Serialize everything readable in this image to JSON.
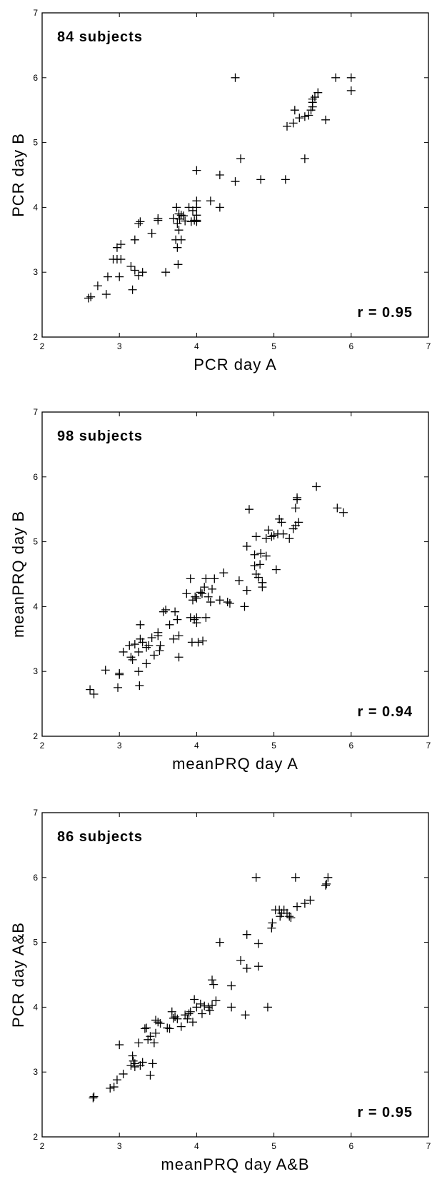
{
  "chart_data": [
    {
      "type": "scatter",
      "marker": "plus",
      "annotation": "84 subjects",
      "correlation_label": "r = 0.95",
      "xlabel": "PCR day A",
      "ylabel": "PCR day B",
      "xlim": [
        2,
        7
      ],
      "ylim": [
        2,
        7
      ],
      "xticks": [
        2,
        3,
        4,
        5,
        6,
        7
      ],
      "yticks": [
        2,
        3,
        4,
        5,
        6,
        7
      ],
      "grid": false,
      "points": [
        [
          2.6,
          2.6
        ],
        [
          2.63,
          2.62
        ],
        [
          2.72,
          2.79
        ],
        [
          2.83,
          2.66
        ],
        [
          2.85,
          2.93
        ],
        [
          2.92,
          3.2
        ],
        [
          2.97,
          3.2
        ],
        [
          3.0,
          2.93
        ],
        [
          3.02,
          3.2
        ],
        [
          2.97,
          3.38
        ],
        [
          3.02,
          3.43
        ],
        [
          3.15,
          3.09
        ],
        [
          3.17,
          2.73
        ],
        [
          3.2,
          3.03
        ],
        [
          3.2,
          3.5
        ],
        [
          3.25,
          2.95
        ],
        [
          3.3,
          3.0
        ],
        [
          3.25,
          3.75
        ],
        [
          3.27,
          3.78
        ],
        [
          3.42,
          3.6
        ],
        [
          3.5,
          3.8
        ],
        [
          3.5,
          3.83
        ],
        [
          3.6,
          3.0
        ],
        [
          3.7,
          3.83
        ],
        [
          3.73,
          3.5
        ],
        [
          3.75,
          3.38
        ],
        [
          3.76,
          3.12
        ],
        [
          3.74,
          4.0
        ],
        [
          3.75,
          3.75
        ],
        [
          3.77,
          3.9
        ],
        [
          3.78,
          3.82
        ],
        [
          3.8,
          3.88
        ],
        [
          3.8,
          3.5
        ],
        [
          3.83,
          3.87
        ],
        [
          3.85,
          3.79
        ],
        [
          3.77,
          3.65
        ],
        [
          3.9,
          4.0
        ],
        [
          3.93,
          3.78
        ],
        [
          3.95,
          3.95
        ],
        [
          3.97,
          3.8
        ],
        [
          4.0,
          4.0
        ],
        [
          4.0,
          4.1
        ],
        [
          4.0,
          3.88
        ],
        [
          4.0,
          3.8
        ],
        [
          4.0,
          3.78
        ],
        [
          4.0,
          4.57
        ],
        [
          4.18,
          4.1
        ],
        [
          4.3,
          4.0
        ],
        [
          4.3,
          4.5
        ],
        [
          4.5,
          4.4
        ],
        [
          4.5,
          6.0
        ],
        [
          4.57,
          4.75
        ],
        [
          4.83,
          4.43
        ],
        [
          5.15,
          4.43
        ],
        [
          5.17,
          5.25
        ],
        [
          5.25,
          5.3
        ],
        [
          5.27,
          5.5
        ],
        [
          5.33,
          5.38
        ],
        [
          5.4,
          5.4
        ],
        [
          5.45,
          5.42
        ],
        [
          5.4,
          4.75
        ],
        [
          5.48,
          5.5
        ],
        [
          5.5,
          5.55
        ],
        [
          5.5,
          5.62
        ],
        [
          5.5,
          5.67
        ],
        [
          5.53,
          5.7
        ],
        [
          5.57,
          5.77
        ],
        [
          5.67,
          5.35
        ],
        [
          5.8,
          6.0
        ],
        [
          6.0,
          6.0
        ],
        [
          6.0,
          5.8
        ]
      ]
    },
    {
      "type": "scatter",
      "marker": "plus",
      "annotation": "98 subjects",
      "correlation_label": "r = 0.94",
      "xlabel": "meanPRQ day A",
      "ylabel": "meanPRQ day B",
      "xlim": [
        2,
        7
      ],
      "ylim": [
        2,
        7
      ],
      "xticks": [
        2,
        3,
        4,
        5,
        6,
        7
      ],
      "yticks": [
        2,
        3,
        4,
        5,
        6,
        7
      ],
      "grid": false,
      "points": [
        [
          2.62,
          2.72
        ],
        [
          2.67,
          2.65
        ],
        [
          2.82,
          3.02
        ],
        [
          2.98,
          2.75
        ],
        [
          3.0,
          2.95
        ],
        [
          3.0,
          2.97
        ],
        [
          3.05,
          3.3
        ],
        [
          3.13,
          3.4
        ],
        [
          3.15,
          3.22
        ],
        [
          3.17,
          3.18
        ],
        [
          3.2,
          3.42
        ],
        [
          3.25,
          3.3
        ],
        [
          3.27,
          3.72
        ],
        [
          3.27,
          3.5
        ],
        [
          3.25,
          3.0
        ],
        [
          3.26,
          2.78
        ],
        [
          3.3,
          3.45
        ],
        [
          3.35,
          3.37
        ],
        [
          3.35,
          3.12
        ],
        [
          3.38,
          3.4
        ],
        [
          3.42,
          3.52
        ],
        [
          3.45,
          3.25
        ],
        [
          3.5,
          3.55
        ],
        [
          3.5,
          3.6
        ],
        [
          3.52,
          3.32
        ],
        [
          3.53,
          3.4
        ],
        [
          3.57,
          3.92
        ],
        [
          3.6,
          3.95
        ],
        [
          3.65,
          3.72
        ],
        [
          3.7,
          3.5
        ],
        [
          3.72,
          3.92
        ],
        [
          3.75,
          3.8
        ],
        [
          3.77,
          3.55
        ],
        [
          3.77,
          3.22
        ],
        [
          3.87,
          4.2
        ],
        [
          3.92,
          4.43
        ],
        [
          3.92,
          3.83
        ],
        [
          3.94,
          3.45
        ],
        [
          3.95,
          4.1
        ],
        [
          3.97,
          3.8
        ],
        [
          3.98,
          4.15
        ],
        [
          4.0,
          4.13
        ],
        [
          4.0,
          3.75
        ],
        [
          4.0,
          3.83
        ],
        [
          4.02,
          3.45
        ],
        [
          4.05,
          4.22
        ],
        [
          4.07,
          4.2
        ],
        [
          4.08,
          3.47
        ],
        [
          4.1,
          4.3
        ],
        [
          4.12,
          4.43
        ],
        [
          4.12,
          3.83
        ],
        [
          4.15,
          4.15
        ],
        [
          4.18,
          4.07
        ],
        [
          4.2,
          4.27
        ],
        [
          4.23,
          4.43
        ],
        [
          4.3,
          4.1
        ],
        [
          4.35,
          4.52
        ],
        [
          4.4,
          4.07
        ],
        [
          4.43,
          4.05
        ],
        [
          4.55,
          4.4
        ],
        [
          4.62,
          4.0
        ],
        [
          4.65,
          4.25
        ],
        [
          4.65,
          4.93
        ],
        [
          4.68,
          5.5
        ],
        [
          4.75,
          4.63
        ],
        [
          4.75,
          4.8
        ],
        [
          4.77,
          5.08
        ],
        [
          4.77,
          4.5
        ],
        [
          4.8,
          4.45
        ],
        [
          4.82,
          4.65
        ],
        [
          4.83,
          4.82
        ],
        [
          4.85,
          4.3
        ],
        [
          4.85,
          4.37
        ],
        [
          4.9,
          4.78
        ],
        [
          4.9,
          5.05
        ],
        [
          4.93,
          5.18
        ],
        [
          4.97,
          5.08
        ],
        [
          5.0,
          5.1
        ],
        [
          5.03,
          4.57
        ],
        [
          5.05,
          5.12
        ],
        [
          5.07,
          5.35
        ],
        [
          5.1,
          5.3
        ],
        [
          5.12,
          5.12
        ],
        [
          5.2,
          5.05
        ],
        [
          5.25,
          5.2
        ],
        [
          5.28,
          5.25
        ],
        [
          5.28,
          5.52
        ],
        [
          5.3,
          5.65
        ],
        [
          5.32,
          5.3
        ],
        [
          5.3,
          5.68
        ],
        [
          5.55,
          5.85
        ],
        [
          5.82,
          5.52
        ],
        [
          5.9,
          5.45
        ]
      ]
    },
    {
      "type": "scatter",
      "marker": "plus",
      "annotation": "86 subjects",
      "correlation_label": "r = 0.95",
      "xlabel": "meanPRQ day A&B",
      "ylabel": "PCR day A&B",
      "xlim": [
        2,
        7
      ],
      "ylim": [
        2,
        7
      ],
      "xticks": [
        2,
        3,
        4,
        5,
        6,
        7
      ],
      "yticks": [
        2,
        3,
        4,
        5,
        6,
        7
      ],
      "grid": false,
      "points": [
        [
          2.66,
          2.6
        ],
        [
          2.67,
          2.62
        ],
        [
          2.88,
          2.75
        ],
        [
          2.93,
          2.77
        ],
        [
          2.97,
          2.88
        ],
        [
          3.0,
          3.42
        ],
        [
          3.05,
          2.97
        ],
        [
          3.15,
          3.1
        ],
        [
          3.17,
          3.25
        ],
        [
          3.18,
          3.17
        ],
        [
          3.2,
          3.13
        ],
        [
          3.2,
          3.08
        ],
        [
          3.25,
          3.45
        ],
        [
          3.27,
          3.1
        ],
        [
          3.3,
          3.15
        ],
        [
          3.33,
          3.67
        ],
        [
          3.35,
          3.68
        ],
        [
          3.37,
          3.5
        ],
        [
          3.4,
          3.55
        ],
        [
          3.4,
          2.95
        ],
        [
          3.43,
          3.13
        ],
        [
          3.45,
          3.45
        ],
        [
          3.47,
          3.6
        ],
        [
          3.47,
          3.8
        ],
        [
          3.5,
          3.77
        ],
        [
          3.53,
          3.75
        ],
        [
          3.62,
          3.68
        ],
        [
          3.65,
          3.67
        ],
        [
          3.68,
          3.93
        ],
        [
          3.7,
          3.83
        ],
        [
          3.72,
          3.85
        ],
        [
          3.75,
          3.82
        ],
        [
          3.8,
          3.7
        ],
        [
          3.85,
          3.88
        ],
        [
          3.88,
          3.82
        ],
        [
          3.9,
          3.9
        ],
        [
          3.92,
          3.93
        ],
        [
          3.95,
          3.77
        ],
        [
          3.97,
          4.12
        ],
        [
          4.0,
          4.0
        ],
        [
          4.05,
          4.05
        ],
        [
          4.07,
          3.9
        ],
        [
          4.1,
          4.02
        ],
        [
          4.15,
          4.0
        ],
        [
          4.17,
          3.95
        ],
        [
          4.2,
          4.03
        ],
        [
          4.2,
          4.42
        ],
        [
          4.22,
          4.35
        ],
        [
          4.25,
          4.1
        ],
        [
          4.3,
          5.0
        ],
        [
          4.45,
          4.33
        ],
        [
          4.45,
          4.0
        ],
        [
          4.57,
          4.72
        ],
        [
          4.63,
          3.88
        ],
        [
          4.65,
          4.6
        ],
        [
          4.65,
          5.12
        ],
        [
          4.77,
          6.0
        ],
        [
          4.8,
          4.98
        ],
        [
          4.8,
          4.63
        ],
        [
          4.92,
          4.0
        ],
        [
          4.97,
          5.22
        ],
        [
          4.98,
          5.3
        ],
        [
          5.02,
          5.5
        ],
        [
          5.07,
          5.5
        ],
        [
          5.08,
          5.4
        ],
        [
          5.1,
          5.45
        ],
        [
          5.13,
          5.5
        ],
        [
          5.17,
          5.45
        ],
        [
          5.2,
          5.4
        ],
        [
          5.22,
          5.38
        ],
        [
          5.28,
          6.0
        ],
        [
          5.3,
          5.55
        ],
        [
          5.4,
          5.6
        ],
        [
          5.47,
          5.65
        ],
        [
          5.67,
          5.88
        ],
        [
          5.68,
          5.9
        ],
        [
          5.7,
          6.0
        ]
      ]
    }
  ]
}
